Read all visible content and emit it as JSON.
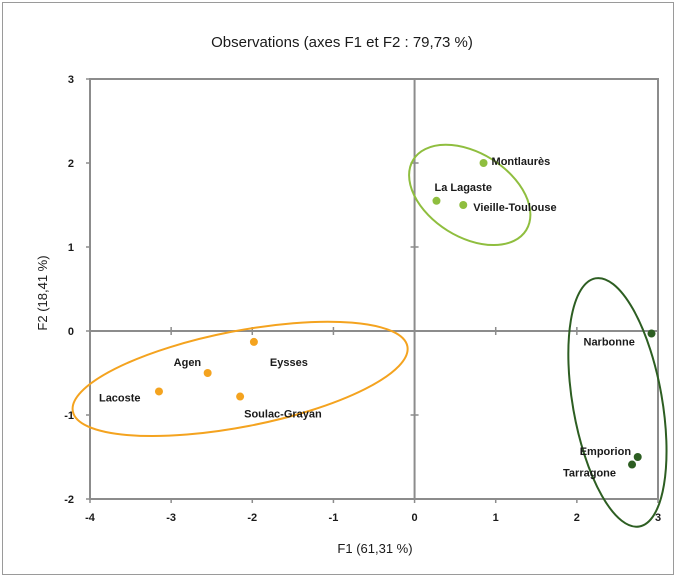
{
  "chart_data": {
    "type": "scatter",
    "title": "Observations (axes F1 et F2 : 79,73 %)",
    "xlabel": "F1 (61,31 %)",
    "ylabel": "F2 (18,41 %)",
    "xlim": [
      -4,
      3
    ],
    "ylim": [
      -2,
      3
    ],
    "xticks": [
      -4,
      -3,
      -2,
      -1,
      0,
      1,
      2,
      3
    ],
    "yticks": [
      -2,
      -1,
      0,
      1,
      2,
      3
    ],
    "grid": false,
    "series": [
      {
        "color": "#f4a31f",
        "points": [
          {
            "label": "Eysses",
            "x": -1.98,
            "y": -0.13
          },
          {
            "label": "Agen",
            "x": -2.55,
            "y": -0.5
          },
          {
            "label": "Lacoste",
            "x": -3.15,
            "y": -0.72
          },
          {
            "label": "Soulac-Grayan",
            "x": -2.15,
            "y": -0.78
          }
        ],
        "ellipse": {
          "cx": -2.15,
          "cy": -0.57,
          "rx": 2.1,
          "ry": 0.57,
          "angle": 11
        }
      },
      {
        "color": "#8fbe3f",
        "points": [
          {
            "label": "Montlaurès",
            "x": 0.85,
            "y": 2.0
          },
          {
            "label": "La Lagaste",
            "x": 0.27,
            "y": 1.55
          },
          {
            "label": "Vieille-Toulouse",
            "x": 0.6,
            "y": 1.5
          }
        ],
        "ellipse": {
          "cx": 0.68,
          "cy": 1.62,
          "rx": 0.82,
          "ry": 0.5,
          "angle": -32
        }
      },
      {
        "color": "#2d5e22",
        "points": [
          {
            "label": "Narbonne",
            "x": 2.92,
            "y": -0.03
          },
          {
            "label": "Emporion",
            "x": 2.75,
            "y": -1.5
          },
          {
            "label": "Tarragone",
            "x": 2.68,
            "y": -1.59
          }
        ],
        "ellipse": {
          "cx": 2.5,
          "cy": -0.85,
          "rx": 0.55,
          "ry": 1.5,
          "angle": 10
        }
      }
    ]
  }
}
